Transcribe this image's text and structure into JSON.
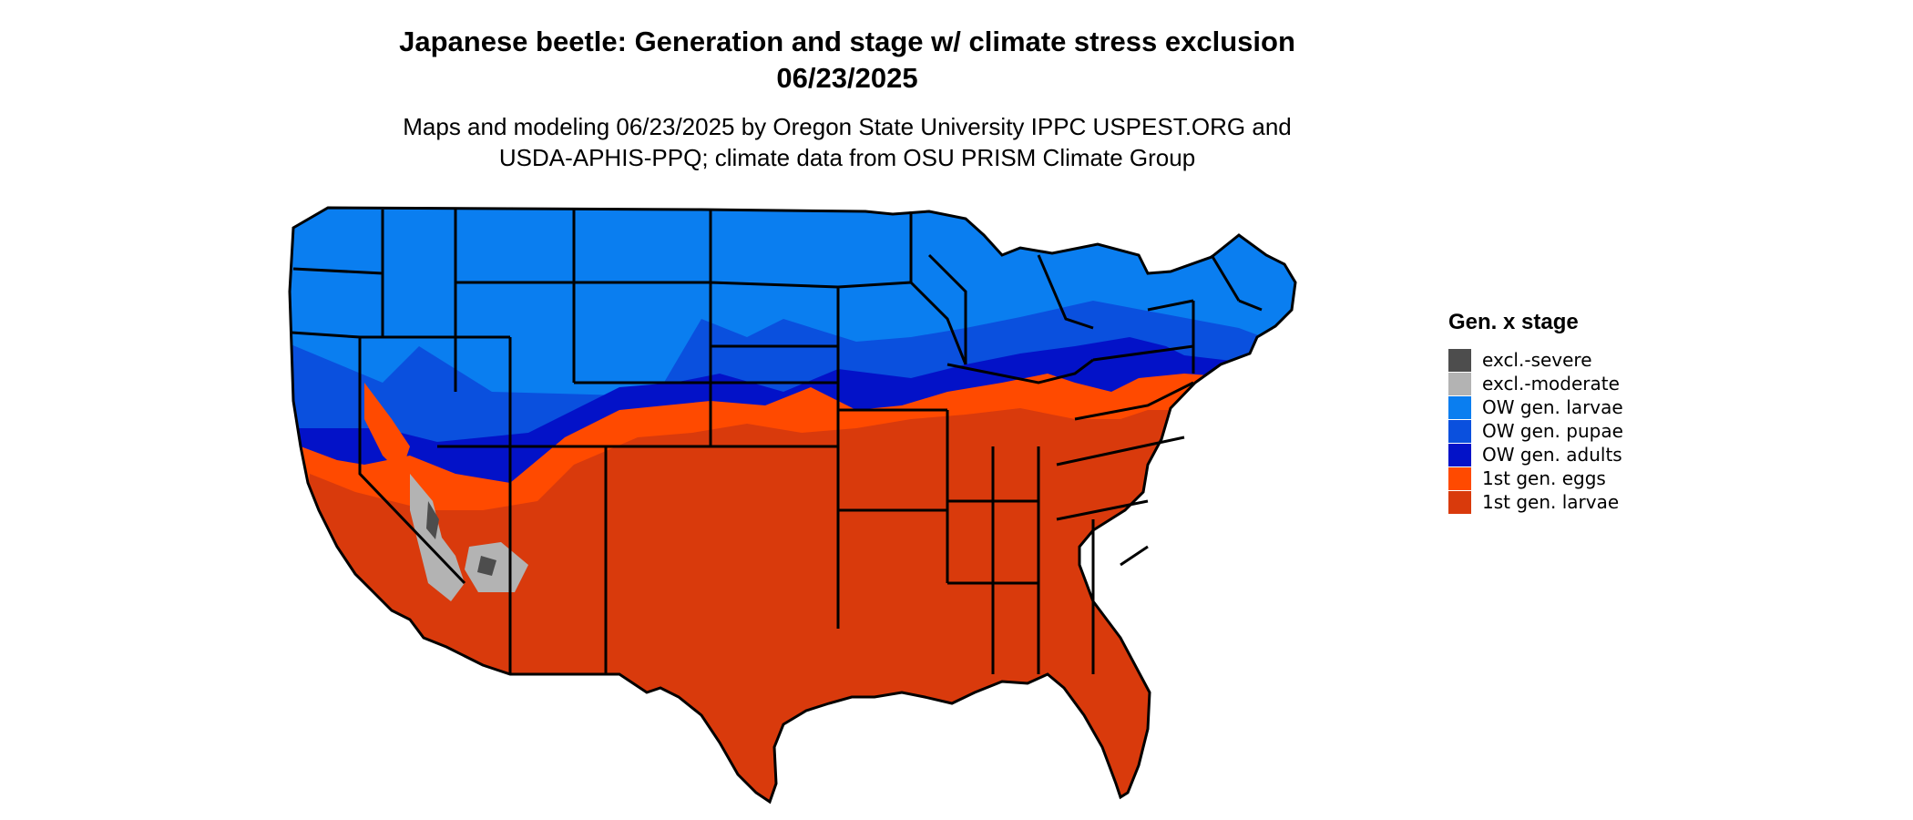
{
  "header": {
    "title_line1": "Japanese beetle: Generation and stage w/ climate stress exclusion",
    "title_line2": "06/23/2025",
    "subtitle_line1": "Maps and modeling 06/23/2025 by Oregon State University IPPC USPEST.ORG and",
    "subtitle_line2": "USDA-APHIS-PPQ; climate data from OSU PRISM Climate Group"
  },
  "legend": {
    "title": "Gen. x stage",
    "items": [
      {
        "label": "excl.-severe",
        "color": "#4d4d4d"
      },
      {
        "label": "excl.-moderate",
        "color": "#b3b3b3"
      },
      {
        "label": "OW gen. larvae",
        "color": "#0a7ef0"
      },
      {
        "label": "OW gen. pupae",
        "color": "#0a50de"
      },
      {
        "label": "OW gen. adults",
        "color": "#0312c8"
      },
      {
        "label": "1st gen. eggs",
        "color": "#ff4a00"
      },
      {
        "label": "1st gen. larvae",
        "color": "#d93a0c"
      }
    ]
  },
  "map_colors": {
    "ow_larvae": "#0a7ef0",
    "ow_pupae": "#0a50de",
    "ow_adults": "#0312c8",
    "gen1_eggs": "#ff4a00",
    "gen1_larvae": "#d93a0c",
    "excl_severe": "#4d4d4d",
    "excl_moderate": "#b3b3b3",
    "border": "#000000"
  }
}
